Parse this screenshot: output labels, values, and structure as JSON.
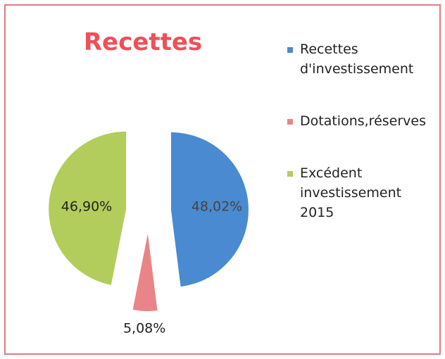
{
  "chart_data": {
    "type": "pie",
    "title": "Recettes",
    "categories": [
      "Recettes d'investissement",
      "Dotations,réserves",
      "Excédent investissement 2015"
    ],
    "values": [
      48.02,
      5.08,
      46.9
    ],
    "value_labels": [
      "48,02%",
      "5,08%",
      "46,90%"
    ],
    "colors": [
      "#4a8ad0",
      "#e98489",
      "#b2cd5c"
    ],
    "legend": "right"
  }
}
